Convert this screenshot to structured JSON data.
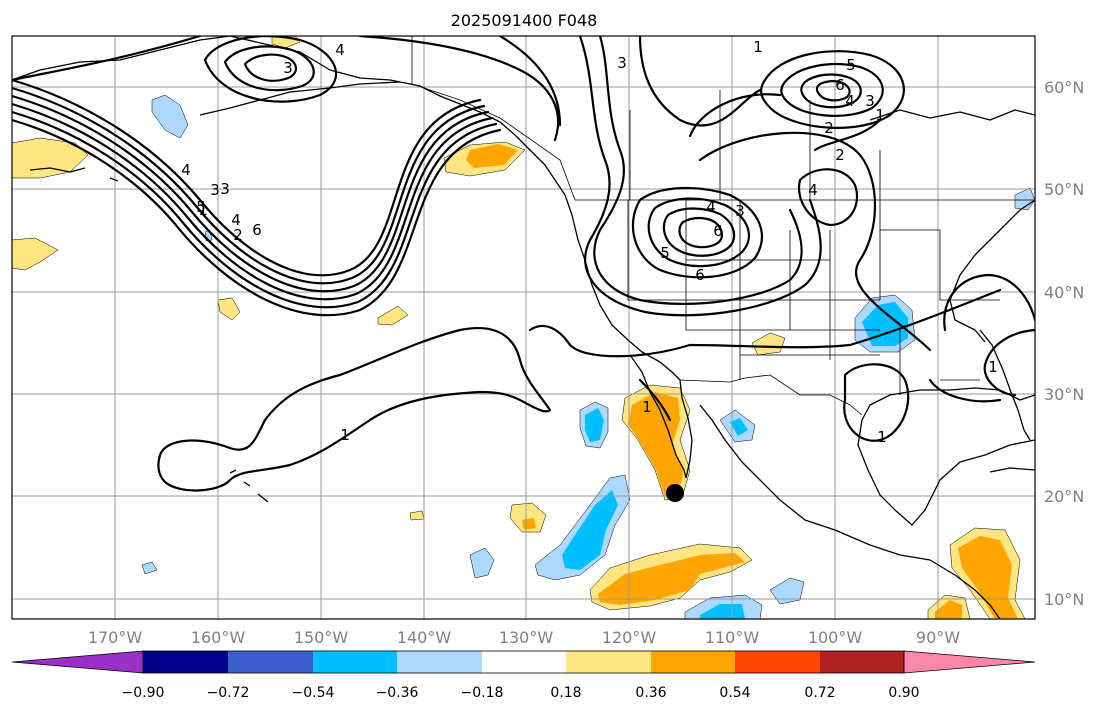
{
  "title": "2025091400 F048",
  "map": {
    "lon_labels": [
      "170°W",
      "160°W",
      "150°W",
      "140°W",
      "130°W",
      "120°W",
      "110°W",
      "100°W",
      "90°W"
    ],
    "lat_labels": [
      "60°N",
      "50°N",
      "40°N",
      "30°N",
      "20°N",
      "10°N"
    ],
    "contour_labels": [
      "4",
      "3",
      "3",
      "5",
      "4",
      "2",
      "1",
      "1",
      "2",
      "3",
      "4",
      "6",
      "3",
      "5",
      "6",
      "4",
      "3",
      "2",
      "1",
      "4",
      "4",
      "3",
      "6",
      "5",
      "6",
      "1",
      "1",
      "1",
      "1"
    ],
    "marker": "storm-center"
  },
  "colorbar": {
    "ticks": [
      "−0.90",
      "−0.72",
      "−0.54",
      "−0.36",
      "−0.18",
      "0.18",
      "0.36",
      "0.54",
      "0.72",
      "0.90"
    ],
    "colors": [
      "#9b30c8",
      "#00008b",
      "#3a5fcd",
      "#00bfff",
      "#add8ff",
      "#ffffff",
      "#ffe680",
      "#ffa500",
      "#ff4500",
      "#b22222",
      "#ff88aa"
    ]
  }
}
